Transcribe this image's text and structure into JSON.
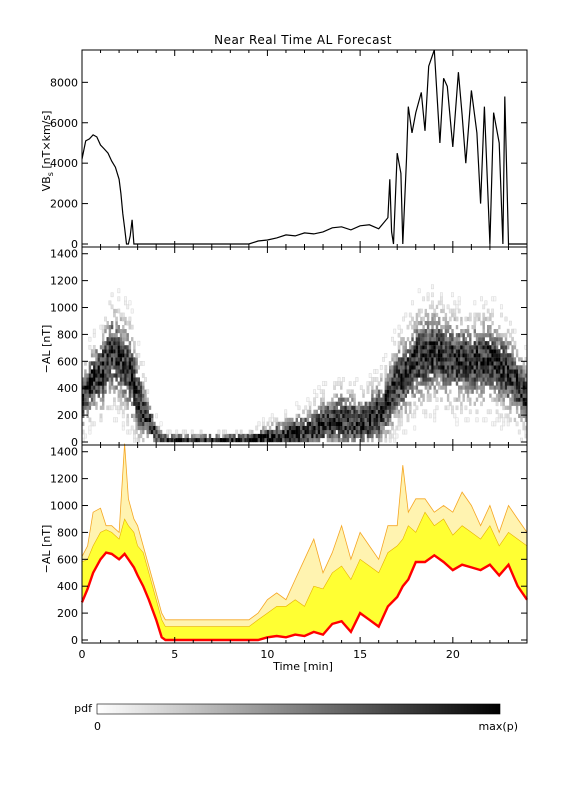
{
  "chart_data": [
    {
      "type": "line",
      "title": "Near Real Time AL Forecast",
      "ylabel": "VB_s [nT×km/s]",
      "ylabel_main": "VB",
      "ylabel_sub": "s",
      "ylabel_unit": " [nT×km/s]",
      "xlim": [
        0,
        24
      ],
      "ylim": [
        0,
        9600
      ],
      "yticks": [
        0,
        2000,
        4000,
        6000,
        8000
      ],
      "series": [
        {
          "x": [
            0,
            0.2,
            0.4,
            0.6,
            0.8,
            1.0,
            1.2,
            1.4,
            1.6,
            1.8,
            2.0,
            2.1,
            2.2,
            2.3,
            2.4,
            2.5,
            2.6,
            2.7,
            2.8,
            2.9,
            3.0,
            3.5,
            4,
            5,
            6,
            7,
            8,
            8.5,
            9,
            9.5,
            10,
            10.5,
            11,
            11.5,
            12,
            12.5,
            13,
            13.5,
            14,
            14.5,
            15,
            15.5,
            16,
            16.5,
            16.6,
            16.7,
            16.8,
            17.0,
            17.2,
            17.3,
            17.5,
            17.6,
            17.8,
            18.0,
            18.3,
            18.5,
            18.7,
            19.0,
            19.3,
            19.5,
            19.7,
            20.0,
            20.3,
            20.5,
            20.7,
            21.0,
            21.3,
            21.5,
            21.7,
            22.0,
            22.2,
            22.5,
            22.7,
            22.8,
            23.0,
            24.0
          ],
          "values": [
            4200,
            5100,
            5200,
            5400,
            5300,
            4900,
            4700,
            4500,
            4100,
            3800,
            3200,
            2500,
            1500,
            800,
            0,
            0,
            400,
            1200,
            0,
            0,
            0,
            0,
            0,
            0,
            0,
            0,
            0,
            0,
            0,
            150,
            200,
            300,
            450,
            400,
            550,
            500,
            600,
            800,
            850,
            700,
            900,
            950,
            750,
            1300,
            3200,
            600,
            0,
            4500,
            3500,
            0,
            4200,
            6800,
            5500,
            6500,
            7500,
            5600,
            8800,
            9600,
            5000,
            8200,
            7800,
            4800,
            8500,
            6400,
            4000,
            7600,
            5500,
            2000,
            6800,
            0,
            6500,
            5000,
            0,
            7300,
            0,
            0
          ]
        }
      ]
    },
    {
      "type": "heatmap",
      "ylabel": "−AL [nT]",
      "xlim": [
        0,
        24
      ],
      "ylim": [
        0,
        1450
      ],
      "yticks": [
        0,
        200,
        400,
        600,
        800,
        1000,
        1200,
        1400
      ],
      "note": "probability density (pdf) of forecast −AL; darker = higher",
      "mode_x": [
        0,
        0.5,
        1.0,
        1.5,
        2.0,
        2.5,
        3.0,
        3.5,
        4.0,
        4.2,
        4.5,
        5,
        6,
        7,
        8,
        9,
        10,
        11,
        12,
        13,
        14,
        15,
        16,
        16.5,
        17,
        17.5,
        18,
        19,
        20,
        21,
        22,
        23,
        24
      ],
      "mode_values": [
        300,
        450,
        500,
        650,
        600,
        520,
        300,
        150,
        40,
        20,
        0,
        0,
        0,
        0,
        0,
        0,
        20,
        40,
        60,
        120,
        160,
        120,
        200,
        300,
        450,
        500,
        600,
        650,
        600,
        580,
        600,
        500,
        300
      ],
      "spread_values": [
        250,
        300,
        350,
        400,
        400,
        420,
        350,
        200,
        100,
        80,
        60,
        60,
        60,
        60,
        60,
        80,
        120,
        160,
        200,
        250,
        280,
        260,
        300,
        320,
        350,
        380,
        400,
        400,
        380,
        380,
        380,
        360,
        300
      ]
    },
    {
      "type": "area",
      "ylabel": "−AL [nT]",
      "xlabel": "Time [min]",
      "xlim": [
        0,
        24
      ],
      "ylim": [
        0,
        1450
      ],
      "xticks": [
        0,
        5,
        10,
        15,
        20
      ],
      "yticks": [
        0,
        200,
        400,
        600,
        800,
        1000,
        1200,
        1400
      ],
      "x": [
        0,
        0.3,
        0.6,
        1.0,
        1.3,
        1.6,
        2.0,
        2.3,
        2.5,
        2.8,
        3.0,
        3.3,
        3.6,
        4.0,
        4.3,
        4.5,
        5,
        6,
        7,
        8,
        9,
        9.5,
        10,
        10.5,
        11,
        11.5,
        12,
        12.5,
        13,
        13.5,
        14,
        14.5,
        15,
        15.5,
        16,
        16.5,
        17,
        17.3,
        17.6,
        18,
        18.5,
        19,
        19.5,
        20,
        20.5,
        21,
        21.5,
        22,
        22.5,
        23,
        23.5,
        24
      ],
      "series": [
        {
          "name": "",
          "color": "#ff0000",
          "values": [
            280,
            380,
            500,
            600,
            650,
            640,
            600,
            640,
            600,
            540,
            480,
            400,
            300,
            150,
            20,
            0,
            0,
            0,
            0,
            0,
            0,
            0,
            20,
            30,
            20,
            40,
            30,
            60,
            40,
            120,
            140,
            60,
            200,
            150,
            100,
            250,
            320,
            400,
            450,
            580,
            580,
            630,
            580,
            520,
            560,
            540,
            520,
            560,
            480,
            560,
            400,
            300
          ]
        },
        {
          "name": "",
          "color": "#ffff33",
          "values": [
            580,
            600,
            700,
            800,
            820,
            800,
            750,
            900,
            850,
            800,
            700,
            650,
            500,
            300,
            150,
            100,
            100,
            100,
            100,
            100,
            100,
            150,
            200,
            250,
            250,
            300,
            250,
            400,
            380,
            500,
            550,
            450,
            600,
            550,
            500,
            650,
            700,
            750,
            850,
            800,
            950,
            850,
            900,
            780,
            850,
            800,
            750,
            850,
            700,
            800,
            750,
            700
          ]
        },
        {
          "name": "",
          "color": "#ffcc66",
          "values": [
            620,
            700,
            950,
            980,
            850,
            850,
            800,
            1460,
            1050,
            900,
            850,
            700,
            550,
            350,
            200,
            150,
            150,
            150,
            150,
            150,
            150,
            200,
            300,
            350,
            300,
            450,
            600,
            750,
            500,
            650,
            850,
            600,
            800,
            700,
            600,
            850,
            850,
            1300,
            950,
            1050,
            1050,
            950,
            1000,
            950,
            1100,
            1000,
            850,
            1000,
            800,
            1000,
            900,
            800
          ]
        }
      ]
    }
  ],
  "colorbar": {
    "label": "pdf",
    "min_label": "0",
    "max_label": "max(p)"
  }
}
